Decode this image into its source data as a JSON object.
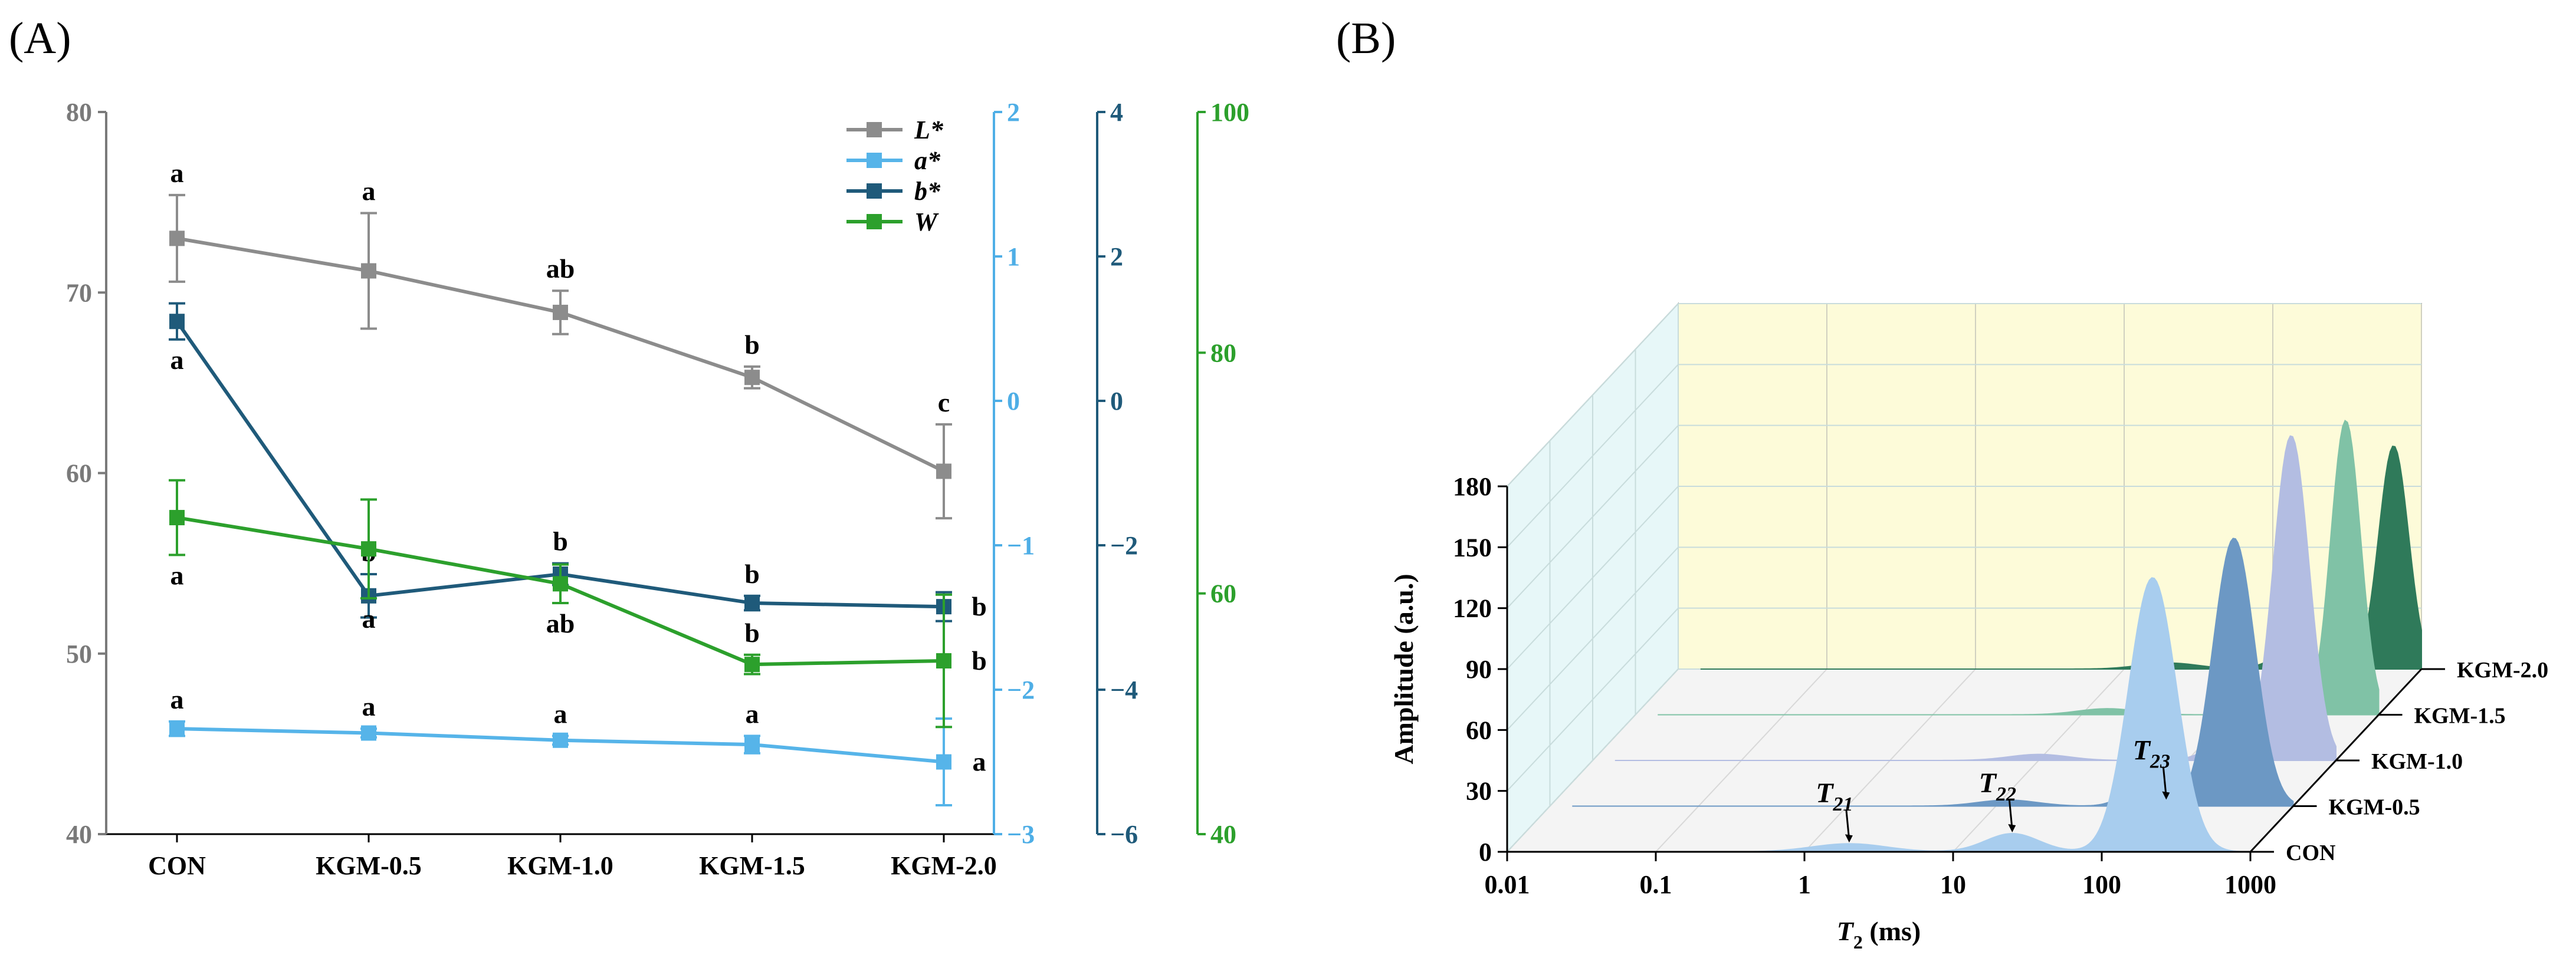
{
  "panels": {
    "a_label": "(A)",
    "b_label": "(B)"
  },
  "chart_data": [
    {
      "type": "line",
      "categories": [
        "CON",
        "KGM-0.5",
        "KGM-1.0",
        "KGM-1.5",
        "KGM-2.0"
      ],
      "axes": [
        {
          "id": "L",
          "ylim": [
            40,
            80
          ],
          "ticks": [
            40,
            50,
            60,
            70,
            80
          ],
          "color": "#7a7a7a"
        },
        {
          "id": "a",
          "ylim": [
            -3,
            2
          ],
          "ticks": [
            -3,
            -2,
            -1,
            0,
            1,
            2
          ],
          "color": "#4eaee6"
        },
        {
          "id": "b",
          "ylim": [
            -6,
            4
          ],
          "ticks": [
            -6,
            -4,
            -2,
            0,
            2,
            4
          ],
          "color": "#1f5a7a"
        },
        {
          "id": "W",
          "ylim": [
            40,
            100
          ],
          "ticks": [
            40,
            60,
            80,
            100
          ],
          "color": "#2ca02c"
        }
      ],
      "series": [
        {
          "name": "L*",
          "axis": "L",
          "color": "#8c8c8c",
          "values": [
            73.0,
            71.2,
            68.9,
            65.3,
            60.1
          ],
          "errors": [
            2.4,
            3.2,
            1.2,
            0.6,
            2.6
          ],
          "letters": [
            "a",
            "a",
            "ab",
            "b",
            "c"
          ],
          "letter_pos": [
            "above",
            "above",
            "above",
            "above",
            "above"
          ]
        },
        {
          "name": "a*",
          "axis": "a",
          "color": "#56b4e9",
          "values": [
            -2.27,
            -2.3,
            -2.35,
            -2.38,
            -2.5
          ],
          "errors": [
            0.05,
            0.03,
            0.03,
            0.06,
            0.3
          ],
          "letters": [
            "a",
            "a",
            "a",
            "a",
            "a"
          ],
          "letter_pos": [
            "above",
            "above",
            "above",
            "above",
            "right"
          ]
        },
        {
          "name": "b*",
          "axis": "b",
          "color": "#1f5a7a",
          "values": [
            1.1,
            -2.7,
            -2.4,
            -2.8,
            -2.85
          ],
          "errors": [
            0.25,
            0.3,
            0.15,
            0.1,
            0.2
          ],
          "letters": [
            "a",
            "b",
            "b",
            "b",
            "b"
          ],
          "letter_pos": [
            "below",
            "above",
            "above",
            "above",
            "right"
          ]
        },
        {
          "name": "W",
          "axis": "W",
          "color": "#2ca02c",
          "values": [
            66.3,
            63.7,
            60.8,
            54.1,
            54.4
          ],
          "errors": [
            3.1,
            4.1,
            1.6,
            0.8,
            5.5
          ],
          "letters": [
            "a",
            "a",
            "ab",
            "b",
            "b"
          ],
          "letter_pos": [
            "below",
            "below",
            "below",
            "above",
            "right"
          ]
        }
      ],
      "legend": {
        "position": "top-right",
        "entries": [
          "L*",
          "a*",
          "b*",
          "W"
        ]
      }
    },
    {
      "type": "area",
      "title": "",
      "xlabel": "T2 (ms)",
      "ylabel": "Amplitude (a.u.)",
      "x_scale": "log",
      "xlim": [
        0.01,
        1000
      ],
      "ylim": [
        0,
        180
      ],
      "xticks": [
        "0.01",
        "0.1",
        "1",
        "10",
        "100",
        "1000"
      ],
      "yticks": [
        0,
        30,
        60,
        90,
        120,
        150,
        180
      ],
      "series": [
        {
          "name": "CON",
          "color": "#a8cdee",
          "peaks": [
            {
              "t2": 2.0,
              "amplitude": 4,
              "width": 0.25
            },
            {
              "t2": 25,
              "amplitude": 9,
              "width": 0.18
            },
            {
              "t2": 220,
              "amplitude": 135,
              "width": 0.16
            }
          ]
        },
        {
          "name": "KGM-0.5",
          "color": "#6c98c4",
          "peaks": [
            {
              "t2": 12,
              "amplitude": 3,
              "width": 0.2
            },
            {
              "t2": 90,
              "amplitude": 7,
              "width": 0.12
            },
            {
              "t2": 400,
              "amplitude": 132,
              "width": 0.14
            }
          ]
        },
        {
          "name": "KGM-1.0",
          "color": "#b3bde2",
          "peaks": [
            {
              "t2": 10,
              "amplitude": 3,
              "width": 0.2
            },
            {
              "t2": 160,
              "amplitude": 6,
              "width": 0.12
            },
            {
              "t2": 500,
              "amplitude": 160,
              "width": 0.12
            }
          ]
        },
        {
          "name": "KGM-1.5",
          "color": "#80c2a6",
          "peaks": [
            {
              "t2": 15,
              "amplitude": 3,
              "width": 0.2
            },
            {
              "t2": 600,
              "amplitude": 145,
              "width": 0.1
            }
          ]
        },
        {
          "name": "KGM-2.0",
          "color": "#2f7a5a",
          "peaks": [
            {
              "t2": 20,
              "amplitude": 3,
              "width": 0.2
            },
            {
              "t2": 120,
              "amplitude": 6,
              "width": 0.12
            },
            {
              "t2": 650,
              "amplitude": 110,
              "width": 0.1
            }
          ]
        }
      ],
      "annotations": [
        {
          "base": "T",
          "sub": "21",
          "series": "CON",
          "t2": 2.0
        },
        {
          "base": "T",
          "sub": "22",
          "series": "CON",
          "t2": 25
        },
        {
          "base": "T",
          "sub": "23",
          "series": "KGM-0.5",
          "t2": 140
        }
      ]
    }
  ]
}
